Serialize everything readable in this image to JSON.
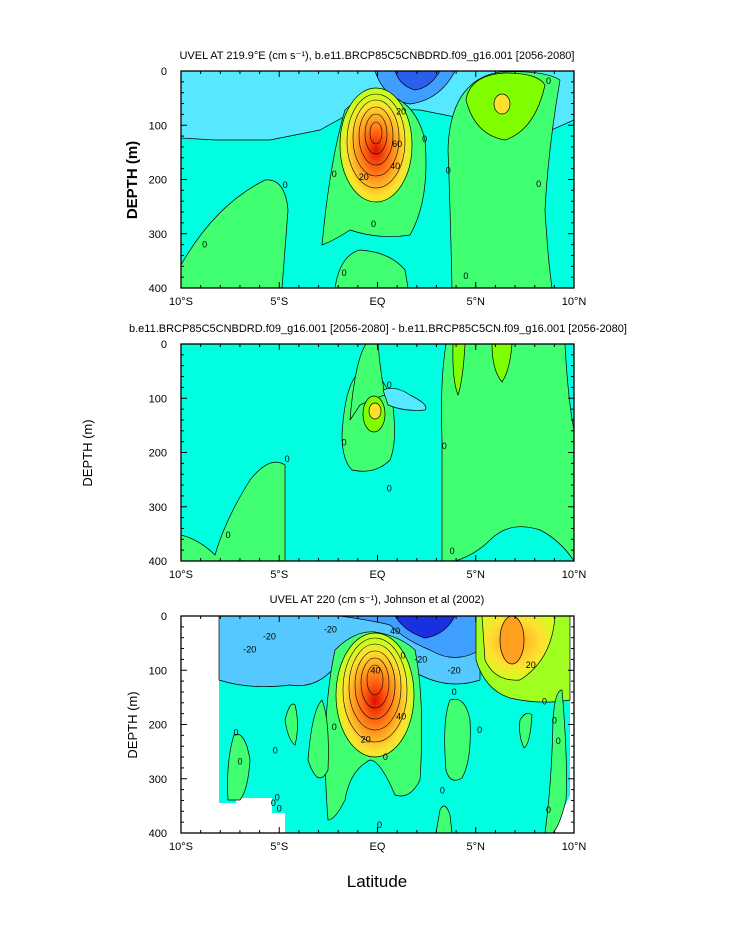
{
  "figure": {
    "x_axis_label": "Latitude",
    "panel2_y_label": "DEPTH (m)"
  },
  "colors": {
    "neg_deep": "#1a2fe0",
    "neg_mid": "#3f7fff",
    "neg_light": "#55c8ff",
    "background": "#00ffe0",
    "pos_low": "#40ff70",
    "pos_mid": "#80ff00",
    "pos_high": "#ffe030",
    "pos_higher": "#ffa020",
    "pos_max": "#e01000",
    "frame": "#000000"
  },
  "chart_data": [
    {
      "type": "heatmap",
      "title": "UVEL AT 219.9°E (cm s⁻¹), b.e11.BRCP85C5CNBDRD.f09_g16.001 [2056-2080]",
      "xlabel": "",
      "ylabel": "DEPTH (m)",
      "x_ticks": [
        "10°S",
        "5°S",
        "EQ",
        "5°N",
        "10°N"
      ],
      "x_tick_values": [
        -10,
        -5,
        0,
        5,
        10
      ],
      "y_ticks": [
        "0",
        "100",
        "200",
        "300",
        "400"
      ],
      "y_tick_values": [
        0,
        100,
        200,
        300,
        400
      ],
      "xlim": [
        -10,
        10
      ],
      "ylim": [
        400,
        0
      ],
      "contour_labels": [
        {
          "text": "20",
          "lat": 1.2,
          "depth": 75
        },
        {
          "text": "60",
          "lat": 1.0,
          "depth": 135
        },
        {
          "text": "40",
          "lat": 0.9,
          "depth": 175
        },
        {
          "text": "20",
          "lat": -0.7,
          "depth": 195
        },
        {
          "text": "0",
          "lat": -8.8,
          "depth": 320
        },
        {
          "text": "0",
          "lat": -4.7,
          "depth": 210
        },
        {
          "text": "0",
          "lat": -2.2,
          "depth": 190
        },
        {
          "text": "0",
          "lat": -0.2,
          "depth": 282
        },
        {
          "text": "0",
          "lat": -1.7,
          "depth": 372
        },
        {
          "text": "0",
          "lat": 2.4,
          "depth": 125
        },
        {
          "text": "0",
          "lat": 3.6,
          "depth": 183
        },
        {
          "text": "0",
          "lat": 4.5,
          "depth": 378
        },
        {
          "text": "0",
          "lat": 8.7,
          "depth": 18
        },
        {
          "text": "0",
          "lat": 8.2,
          "depth": 208
        }
      ]
    },
    {
      "type": "heatmap",
      "title": "b.e11.BRCP85C5CNBDRD.f09_g16.001 [2056-2080] - b.e11.BRCP85C5CN.f09_g16.001 [2056-2080]",
      "xlabel": "",
      "ylabel": "",
      "x_ticks": [
        "10°S",
        "5°S",
        "EQ",
        "5°N",
        "10°N"
      ],
      "x_tick_values": [
        -10,
        -5,
        0,
        5,
        10
      ],
      "y_ticks": [
        "0",
        "100",
        "200",
        "300",
        "400"
      ],
      "y_tick_values": [
        0,
        100,
        200,
        300,
        400
      ],
      "xlim": [
        -10,
        10
      ],
      "ylim": [
        400,
        0
      ],
      "contour_labels": [
        {
          "text": "0",
          "lat": -7.6,
          "depth": 352
        },
        {
          "text": "0",
          "lat": -4.6,
          "depth": 212
        },
        {
          "text": "0",
          "lat": -1.7,
          "depth": 182
        },
        {
          "text": "0",
          "lat": 0.6,
          "depth": 76
        },
        {
          "text": "0",
          "lat": 0.6,
          "depth": 266
        },
        {
          "text": "0",
          "lat": 3.4,
          "depth": 188
        },
        {
          "text": "0",
          "lat": 3.8,
          "depth": 382
        }
      ]
    },
    {
      "type": "heatmap",
      "title": "UVEL AT 220 (cm s⁻¹), Johnson et al (2002)",
      "xlabel": "",
      "ylabel": "DEPTH (m)",
      "x_ticks": [
        "10°S",
        "5°S",
        "EQ",
        "5°N",
        "10°N"
      ],
      "x_tick_values": [
        -10,
        -5,
        0,
        5,
        10
      ],
      "y_ticks": [
        "0",
        "100",
        "200",
        "300",
        "400"
      ],
      "y_tick_values": [
        0,
        100,
        200,
        300,
        400
      ],
      "xlim": [
        -10,
        10
      ],
      "ylim": [
        400,
        0
      ],
      "contour_labels": [
        {
          "text": "-20",
          "lat": -5.5,
          "depth": 38
        },
        {
          "text": "-20",
          "lat": -6.5,
          "depth": 62
        },
        {
          "text": "-20",
          "lat": -2.4,
          "depth": 25
        },
        {
          "text": "40",
          "lat": 0.9,
          "depth": 28
        },
        {
          "text": "0",
          "lat": 1.3,
          "depth": 73
        },
        {
          "text": "-20",
          "lat": 2.2,
          "depth": 80
        },
        {
          "text": "-20",
          "lat": 3.9,
          "depth": 100
        },
        {
          "text": "20",
          "lat": 7.8,
          "depth": 90
        },
        {
          "text": "40",
          "lat": -0.1,
          "depth": 100
        },
        {
          "text": "40",
          "lat": 1.2,
          "depth": 185
        },
        {
          "text": "20",
          "lat": -0.6,
          "depth": 228
        },
        {
          "text": "0",
          "lat": -7.2,
          "depth": 215
        },
        {
          "text": "0",
          "lat": -7.0,
          "depth": 268
        },
        {
          "text": "0",
          "lat": -5.1,
          "depth": 335
        },
        {
          "text": "0",
          "lat": -5.0,
          "depth": 355
        },
        {
          "text": "0",
          "lat": -2.2,
          "depth": 205
        },
        {
          "text": "0",
          "lat": -5.2,
          "depth": 248
        },
        {
          "text": "0",
          "lat": 0.4,
          "depth": 260
        },
        {
          "text": "0",
          "lat": 0.1,
          "depth": 385
        },
        {
          "text": "0",
          "lat": 3.9,
          "depth": 140
        },
        {
          "text": "0",
          "lat": 5.2,
          "depth": 210
        },
        {
          "text": "0",
          "lat": 3.3,
          "depth": 322
        },
        {
          "text": "0",
          "lat": 8.5,
          "depth": 158
        },
        {
          "text": "0",
          "lat": 9.0,
          "depth": 193
        },
        {
          "text": "0",
          "lat": 9.2,
          "depth": 230
        },
        {
          "text": "0",
          "lat": 8.7,
          "depth": 358
        },
        {
          "text": "0",
          "lat": -5.3,
          "depth": 345
        }
      ]
    }
  ]
}
